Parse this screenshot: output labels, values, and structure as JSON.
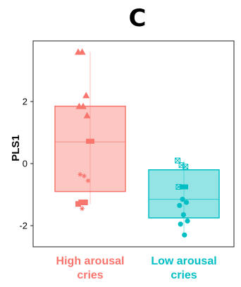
{
  "chart_data": {
    "type": "box",
    "panel_label": "C",
    "ylabel": "PLS1",
    "ylim": [
      -2.7,
      3.9
    ],
    "yticks": [
      -2,
      0,
      2
    ],
    "grid": false,
    "legend": "none",
    "categories": [
      "High arousal cries",
      "Low arousal cries"
    ],
    "colors": {
      "High arousal cries": "#f8766d",
      "Low arousal cries": "#00bfc4"
    },
    "boxes": [
      {
        "category": "High arousal cries",
        "q1": -0.9,
        "median": 0.7,
        "q3": 1.85,
        "whisker_low": -1.3,
        "whisker_high": 3.6,
        "mean": 0.72,
        "points": [
          {
            "y": 3.6,
            "shape": "triangle"
          },
          {
            "y": 3.6,
            "shape": "triangle"
          },
          {
            "y": 2.2,
            "shape": "triangle"
          },
          {
            "y": 1.85,
            "shape": "triangle"
          },
          {
            "y": 1.85,
            "shape": "triangle"
          },
          {
            "y": 1.55,
            "shape": "triangle"
          },
          {
            "y": -0.35,
            "shape": "asterisk"
          },
          {
            "y": -0.4,
            "shape": "asterisk"
          },
          {
            "y": -0.55,
            "shape": "asterisk"
          },
          {
            "y": -1.25,
            "shape": "square"
          },
          {
            "y": -1.25,
            "shape": "square"
          },
          {
            "y": -1.3,
            "shape": "square"
          },
          {
            "y": -1.45,
            "shape": "asterisk"
          }
        ]
      },
      {
        "category": "Low arousal cries",
        "q1": -1.75,
        "median": -1.15,
        "q3": -0.2,
        "whisker_low": -2.35,
        "whisker_high": 0.1,
        "mean": -0.75,
        "points": [
          {
            "y": 0.1,
            "shape": "square-x"
          },
          {
            "y": -0.05,
            "shape": "square-x"
          },
          {
            "y": -0.1,
            "shape": "square-x"
          },
          {
            "y": -0.75,
            "shape": "square-x"
          },
          {
            "y": -1.15,
            "shape": "circle"
          },
          {
            "y": -1.25,
            "shape": "circle"
          },
          {
            "y": -1.35,
            "shape": "circle"
          },
          {
            "y": -1.65,
            "shape": "circle"
          },
          {
            "y": -1.85,
            "shape": "circle"
          },
          {
            "y": -1.95,
            "shape": "circle"
          },
          {
            "y": -2.3,
            "shape": "circle"
          }
        ]
      }
    ]
  }
}
